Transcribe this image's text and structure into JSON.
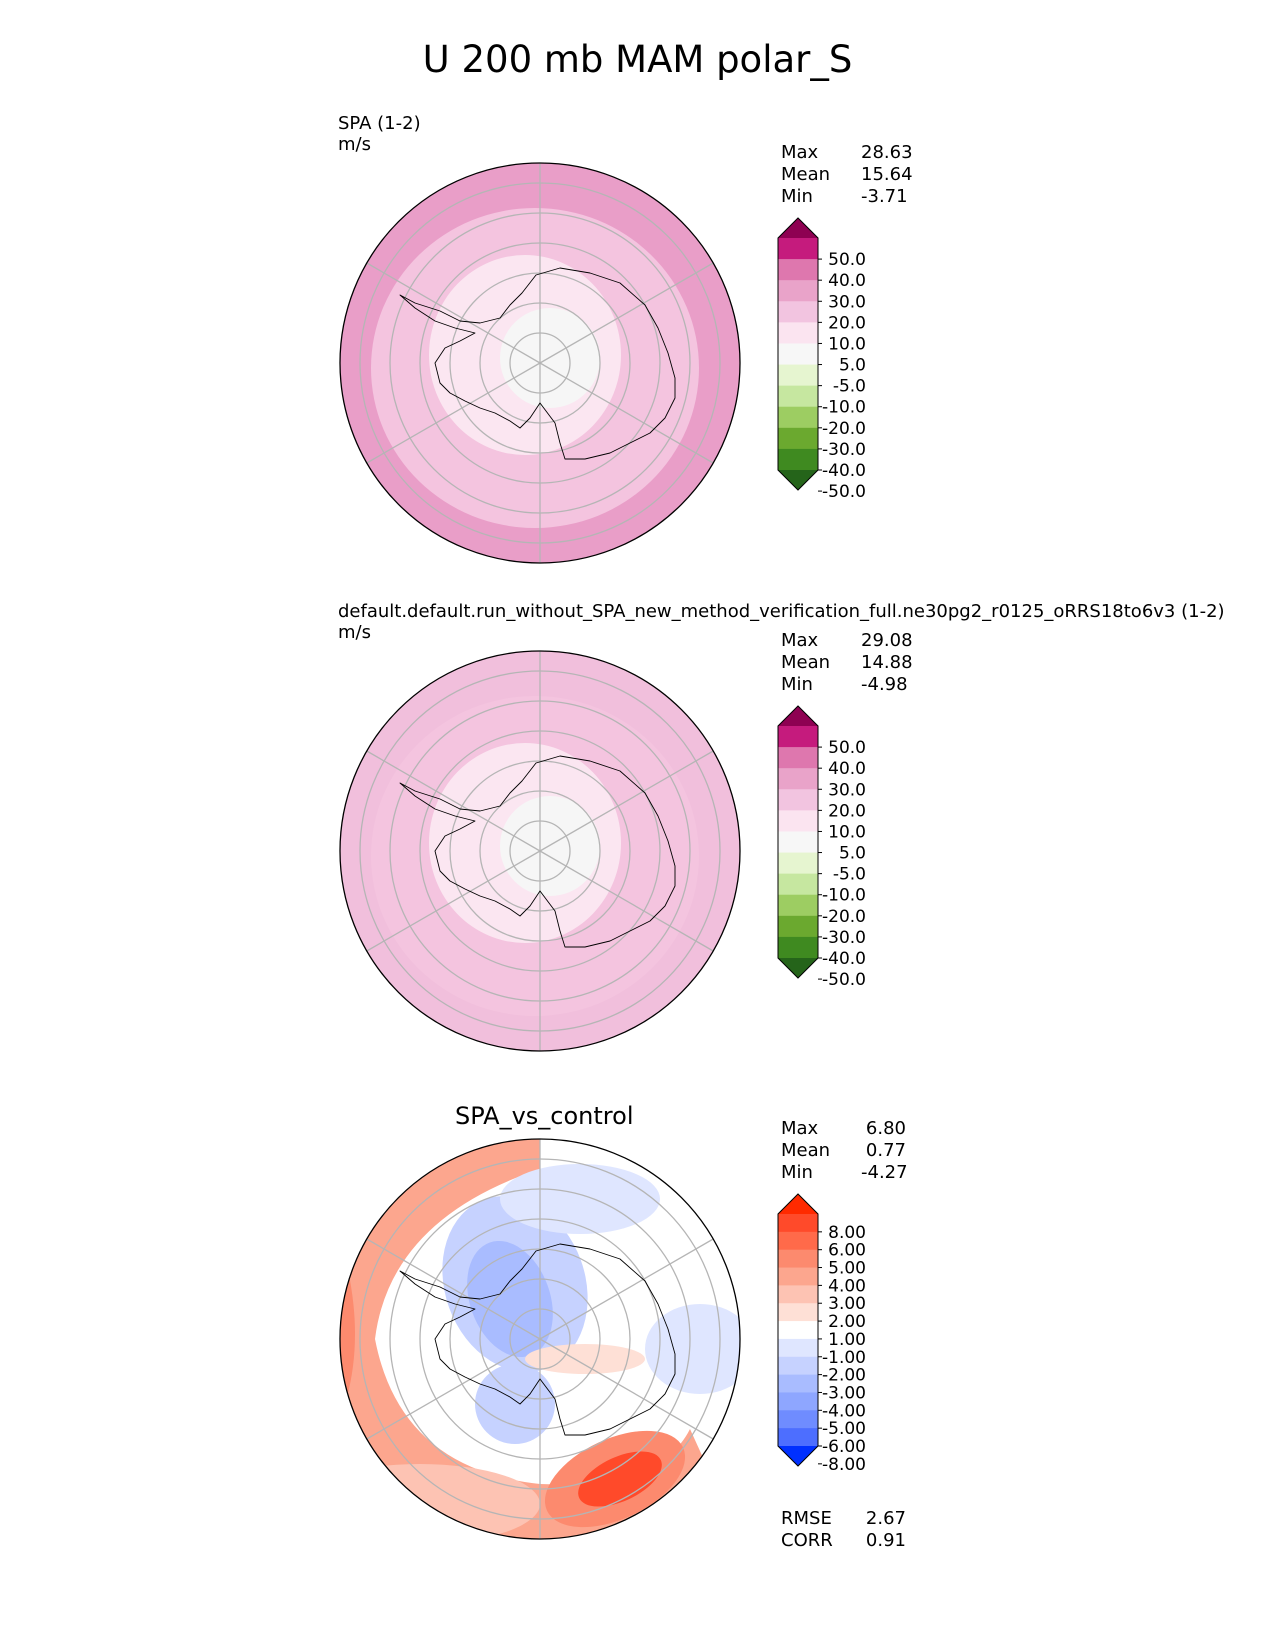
{
  "figure": {
    "title": "U 200 mb MAM polar_S"
  },
  "chart_data": [
    {
      "type": "heatmap",
      "projection": "south-polar-stereographic",
      "title_left": "SPA (1-2)",
      "units": "m/s",
      "stats": {
        "max": "28.63",
        "mean": "15.64",
        "min": "-3.71"
      },
      "colorbar": {
        "levels": [
          "50.0",
          "40.0",
          "30.0",
          "20.0",
          "10.0",
          "5.0",
          "-5.0",
          "-10.0",
          "-20.0",
          "-30.0",
          "-40.0",
          "-50.0"
        ],
        "colors": [
          "#8e0152",
          "#c51b7d",
          "#de77ae",
          "#e9a3c9",
          "#f2c4e0",
          "#fbe4f0",
          "#f7f7f7",
          "#e6f5d0",
          "#c6e7a0",
          "#9dcd62",
          "#6ba92f",
          "#3f8a20",
          "#25641a"
        ],
        "extend": "both"
      },
      "field": {
        "center": "#f6f6f6",
        "rings": [
          "#fbe6f1",
          "#f4c4df",
          "#e99ec8"
        ]
      }
    },
    {
      "type": "heatmap",
      "projection": "south-polar-stereographic",
      "title_left": "default.default.run_without_SPA_new_method_verification_full.ne30pg2_r0125_oRRS18to6v3 (1-2)",
      "units": "m/s",
      "stats": {
        "max": "29.08",
        "mean": "14.88",
        "min": "-4.98"
      },
      "colorbar": {
        "levels": [
          "50.0",
          "40.0",
          "30.0",
          "20.0",
          "10.0",
          "5.0",
          "-5.0",
          "-10.0",
          "-20.0",
          "-30.0",
          "-40.0",
          "-50.0"
        ],
        "colors": [
          "#8e0152",
          "#c51b7d",
          "#de77ae",
          "#e9a3c9",
          "#f2c4e0",
          "#fbe4f0",
          "#f7f7f7",
          "#e6f5d0",
          "#c6e7a0",
          "#9dcd62",
          "#6ba92f",
          "#3f8a20",
          "#25641a"
        ],
        "extend": "both"
      },
      "field": {
        "center": "#f6f6f6",
        "rings": [
          "#fbe6f1",
          "#f4c4df",
          "#f1bfdc"
        ]
      }
    },
    {
      "type": "heatmap",
      "projection": "south-polar-stereographic",
      "title_center": "SPA_vs_control",
      "stats": {
        "max": "6.80",
        "mean": "0.77",
        "min": "-4.27"
      },
      "metrics": {
        "rmse": "2.67",
        "corr": "0.91"
      },
      "colorbar": {
        "levels": [
          "8.00",
          "6.00",
          "5.00",
          "4.00",
          "3.00",
          "2.00",
          "1.00",
          "-1.00",
          "-2.00",
          "-3.00",
          "-4.00",
          "-5.00",
          "-6.00",
          "-8.00"
        ],
        "colors": [
          "#ff2a00",
          "#ff4a2a",
          "#ff6a4a",
          "#fc8a6e",
          "#fca68e",
          "#fdc3b3",
          "#fee0d6",
          "#ffffff",
          "#dfe6ff",
          "#c6d2ff",
          "#a9bcff",
          "#8ea6ff",
          "#6f8cff",
          "#4d6eff",
          "#0030ff"
        ],
        "extend": "both"
      }
    }
  ],
  "labels": {
    "max": "Max",
    "mean": "Mean",
    "min": "Min",
    "rmse": "RMSE",
    "corr": "CORR"
  }
}
